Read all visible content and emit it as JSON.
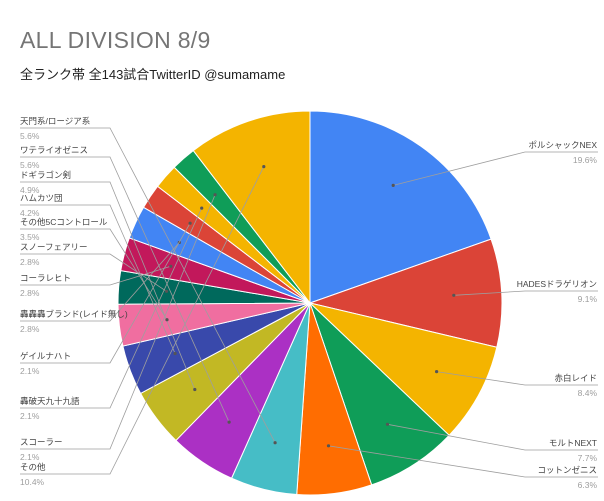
{
  "title": "ALL DIVISION 8/9",
  "subtitle": "全ランク帯 全143試合TwitterID @sumamame",
  "chart_data": {
    "type": "pie",
    "title": "ALL DIVISION 8/9",
    "subtitle": "全ランク帯 全143試合TwitterID @sumamame",
    "slices": [
      {
        "label": "ポルシャックNEX",
        "value": 19.6,
        "pct": "19.6%",
        "color": "#4285f4"
      },
      {
        "label": "HADESドラゲリオン",
        "value": 9.1,
        "pct": "9.1%",
        "color": "#db4437"
      },
      {
        "label": "赤白レイド",
        "value": 8.4,
        "pct": "8.4%",
        "color": "#f4b400"
      },
      {
        "label": "モルトNEXT",
        "value": 7.7,
        "pct": "7.7%",
        "color": "#0f9d58"
      },
      {
        "label": "コットンゼニス",
        "value": 6.3,
        "pct": "6.3%",
        "color": "#ff6d01"
      },
      {
        "label": "天門系/ロージア系",
        "value": 5.6,
        "pct": "5.6%",
        "color": "#46bdc6"
      },
      {
        "label": "ワテライオゼニス",
        "value": 5.6,
        "pct": "5.6%",
        "color": "#ab30c4"
      },
      {
        "label": "ドギラゴン剣",
        "value": 4.9,
        "pct": "4.9%",
        "color": "#c2b824"
      },
      {
        "label": "ハムカツ団",
        "value": 4.2,
        "pct": "4.2%",
        "color": "#3949ab"
      },
      {
        "label": "その他5Cコントロール",
        "value": 3.5,
        "pct": "3.5%",
        "color": "#f06ea0"
      },
      {
        "label": "スノーフェアリー",
        "value": 2.8,
        "pct": "2.8%",
        "color": "#00695c"
      },
      {
        "label": "コーラレヒト",
        "value": 2.8,
        "pct": "2.8%",
        "color": "#c2185b"
      },
      {
        "label": "轟轟轟ブランド(レイド無し)",
        "value": 2.8,
        "pct": "2.8%",
        "color": "#4285f4"
      },
      {
        "label": "ゲイルナハト",
        "value": 2.1,
        "pct": "2.1%",
        "color": "#db4437"
      },
      {
        "label": "轟破天九十九語",
        "value": 2.1,
        "pct": "2.1%",
        "color": "#f4b400"
      },
      {
        "label": "スコーラー",
        "value": 2.1,
        "pct": "2.1%",
        "color": "#0f9d58"
      },
      {
        "label": "その他",
        "value": 10.4,
        "pct": "10.4%",
        "color": "#f4b400"
      }
    ]
  }
}
